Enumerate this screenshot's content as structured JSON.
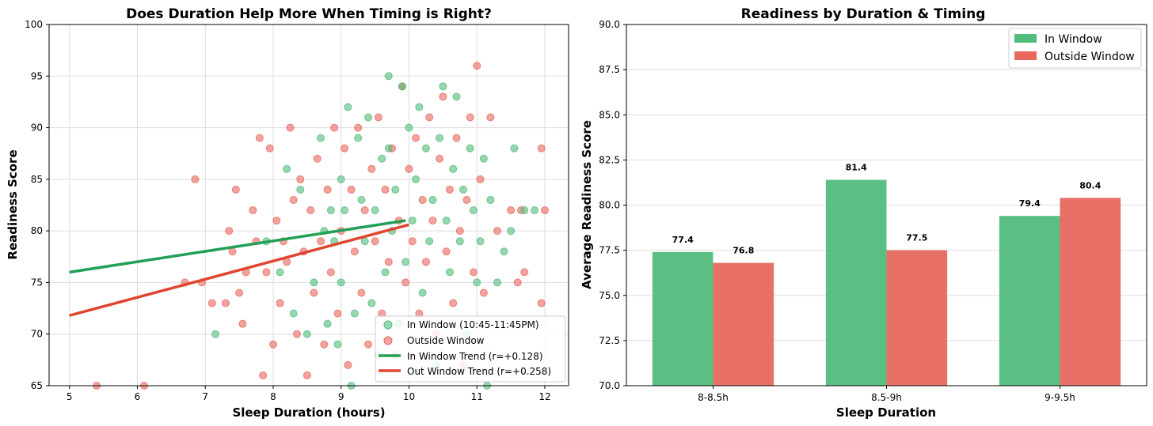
{
  "colors": {
    "in_window": "#52BC7C",
    "outside_window": "#E8685E",
    "in_trend": "#22A055",
    "out_trend": "#E04530"
  },
  "chart_data": [
    {
      "type": "scatter",
      "title": "Does Duration Help More When Timing is Right?",
      "xlabel": "Sleep Duration (hours)",
      "ylabel": "Readiness Score",
      "xlim": [
        4.7,
        12.35
      ],
      "ylim": [
        65,
        100
      ],
      "xticks": [
        5,
        6,
        7,
        8,
        9,
        10,
        11,
        12
      ],
      "yticks": [
        65,
        70,
        75,
        80,
        85,
        90,
        95,
        100
      ],
      "grid": true,
      "legend_position": "bottom-right",
      "series": [
        {
          "name": "In Window (10:45-11:45PM)",
          "kind": "points",
          "color": "#52BC7C",
          "points": [
            [
              7.15,
              70
            ],
            [
              7.9,
              79
            ],
            [
              8.1,
              76
            ],
            [
              8.2,
              86
            ],
            [
              8.3,
              72
            ],
            [
              8.4,
              84
            ],
            [
              8.5,
              70
            ],
            [
              8.6,
              75
            ],
            [
              8.7,
              89
            ],
            [
              8.75,
              80
            ],
            [
              8.8,
              71
            ],
            [
              8.85,
              82
            ],
            [
              8.9,
              79
            ],
            [
              8.95,
              69
            ],
            [
              9.0,
              75
            ],
            [
              9.0,
              85
            ],
            [
              9.05,
              82
            ],
            [
              9.1,
              92
            ],
            [
              9.15,
              65
            ],
            [
              9.2,
              72
            ],
            [
              9.25,
              89
            ],
            [
              9.3,
              83
            ],
            [
              9.35,
              79
            ],
            [
              9.4,
              91
            ],
            [
              9.45,
              73
            ],
            [
              9.5,
              82
            ],
            [
              9.55,
              68
            ],
            [
              9.6,
              87
            ],
            [
              9.65,
              76
            ],
            [
              9.7,
              95
            ],
            [
              9.7,
              88
            ],
            [
              9.75,
              80
            ],
            [
              9.8,
              84
            ],
            [
              9.85,
              71
            ],
            [
              9.9,
              94
            ],
            [
              9.95,
              77
            ],
            [
              10.0,
              90
            ],
            [
              10.05,
              81
            ],
            [
              10.1,
              85
            ],
            [
              10.15,
              92
            ],
            [
              10.2,
              74
            ],
            [
              10.25,
              88
            ],
            [
              10.3,
              79
            ],
            [
              10.35,
              83
            ],
            [
              10.4,
              67
            ],
            [
              10.45,
              89
            ],
            [
              10.5,
              94
            ],
            [
              10.55,
              81
            ],
            [
              10.6,
              76
            ],
            [
              10.65,
              86
            ],
            [
              10.7,
              93
            ],
            [
              10.75,
              79
            ],
            [
              10.8,
              84
            ],
            [
              10.85,
              70
            ],
            [
              10.9,
              88
            ],
            [
              10.95,
              82
            ],
            [
              11.0,
              75
            ],
            [
              11.05,
              79
            ],
            [
              11.1,
              87
            ],
            [
              11.15,
              65
            ],
            [
              11.2,
              83
            ],
            [
              11.3,
              75
            ],
            [
              11.4,
              78
            ],
            [
              11.5,
              80
            ],
            [
              11.55,
              88
            ],
            [
              11.7,
              82
            ],
            [
              11.85,
              82
            ]
          ]
        },
        {
          "name": "Outside Window",
          "kind": "points",
          "color": "#E8685E",
          "points": [
            [
              5.4,
              65
            ],
            [
              6.1,
              65
            ],
            [
              6.7,
              75
            ],
            [
              6.85,
              85
            ],
            [
              6.95,
              75
            ],
            [
              7.1,
              73
            ],
            [
              7.3,
              73
            ],
            [
              7.35,
              80
            ],
            [
              7.4,
              78
            ],
            [
              7.45,
              84
            ],
            [
              7.5,
              74
            ],
            [
              7.55,
              71
            ],
            [
              7.6,
              76
            ],
            [
              7.7,
              82
            ],
            [
              7.75,
              79
            ],
            [
              7.8,
              89
            ],
            [
              7.85,
              66
            ],
            [
              7.9,
              76
            ],
            [
              7.95,
              88
            ],
            [
              8.0,
              69
            ],
            [
              8.05,
              81
            ],
            [
              8.1,
              73
            ],
            [
              8.15,
              79
            ],
            [
              8.2,
              77
            ],
            [
              8.25,
              90
            ],
            [
              8.3,
              83
            ],
            [
              8.35,
              70
            ],
            [
              8.4,
              85
            ],
            [
              8.45,
              78
            ],
            [
              8.5,
              66
            ],
            [
              8.55,
              82
            ],
            [
              8.6,
              74
            ],
            [
              8.65,
              87
            ],
            [
              8.7,
              79
            ],
            [
              8.75,
              69
            ],
            [
              8.8,
              84
            ],
            [
              8.85,
              76
            ],
            [
              8.9,
              90
            ],
            [
              8.95,
              72
            ],
            [
              9.0,
              80
            ],
            [
              9.05,
              88
            ],
            [
              9.1,
              67
            ],
            [
              9.15,
              84
            ],
            [
              9.2,
              78
            ],
            [
              9.25,
              90
            ],
            [
              9.3,
              74
            ],
            [
              9.35,
              82
            ],
            [
              9.4,
              69
            ],
            [
              9.45,
              86
            ],
            [
              9.5,
              79
            ],
            [
              9.55,
              91
            ],
            [
              9.6,
              72
            ],
            [
              9.65,
              84
            ],
            [
              9.7,
              77
            ],
            [
              9.75,
              88
            ],
            [
              9.8,
              68
            ],
            [
              9.85,
              81
            ],
            [
              9.9,
              94
            ],
            [
              9.95,
              75
            ],
            [
              10.0,
              86
            ],
            [
              10.05,
              79
            ],
            [
              10.1,
              89
            ],
            [
              10.15,
              72
            ],
            [
              10.2,
              83
            ],
            [
              10.25,
              77
            ],
            [
              10.3,
              91
            ],
            [
              10.35,
              81
            ],
            [
              10.4,
              70
            ],
            [
              10.45,
              87
            ],
            [
              10.5,
              93
            ],
            [
              10.55,
              78
            ],
            [
              10.6,
              84
            ],
            [
              10.65,
              73
            ],
            [
              10.7,
              89
            ],
            [
              10.75,
              80
            ],
            [
              10.8,
              67
            ],
            [
              10.85,
              83
            ],
            [
              10.9,
              91
            ],
            [
              10.95,
              76
            ],
            [
              11.0,
              96
            ],
            [
              11.05,
              85
            ],
            [
              11.1,
              74
            ],
            [
              11.2,
              91
            ],
            [
              11.3,
              80
            ],
            [
              11.5,
              82
            ],
            [
              11.6,
              75
            ],
            [
              11.65,
              82
            ],
            [
              11.7,
              76
            ],
            [
              11.95,
              88
            ],
            [
              11.95,
              73
            ],
            [
              12.0,
              82
            ]
          ]
        },
        {
          "name": "In Window Trend (r=+0.128)",
          "kind": "line",
          "color": "#22A055",
          "points": [
            [
              5.0,
              76.0
            ],
            [
              9.95,
              81.0
            ]
          ]
        },
        {
          "name": "Out Window Trend (r=+0.258)",
          "kind": "line",
          "color": "#E04530",
          "points": [
            [
              5.0,
              71.8
            ],
            [
              10.0,
              80.6
            ]
          ]
        }
      ]
    },
    {
      "type": "bar",
      "title": "Readiness by Duration & Timing",
      "xlabel": "Sleep Duration",
      "ylabel": "Average Readiness Score",
      "categories": [
        "8-8.5h",
        "8.5-9h",
        "9-9.5h"
      ],
      "ylim": [
        70,
        90
      ],
      "yticks": [
        "70.0",
        "72.5",
        "75.0",
        "77.5",
        "80.0",
        "82.5",
        "85.0",
        "87.5",
        "90.0"
      ],
      "grid": true,
      "legend_position": "top-right",
      "series": [
        {
          "name": "In Window",
          "color": "#52BC7C",
          "values": [
            77.4,
            81.4,
            79.4
          ],
          "labels": [
            "77.4",
            "81.4",
            "79.4"
          ]
        },
        {
          "name": "Outside Window",
          "color": "#E8685E",
          "values": [
            76.8,
            77.5,
            80.4
          ],
          "labels": [
            "76.8",
            "77.5",
            "80.4"
          ]
        }
      ]
    }
  ]
}
